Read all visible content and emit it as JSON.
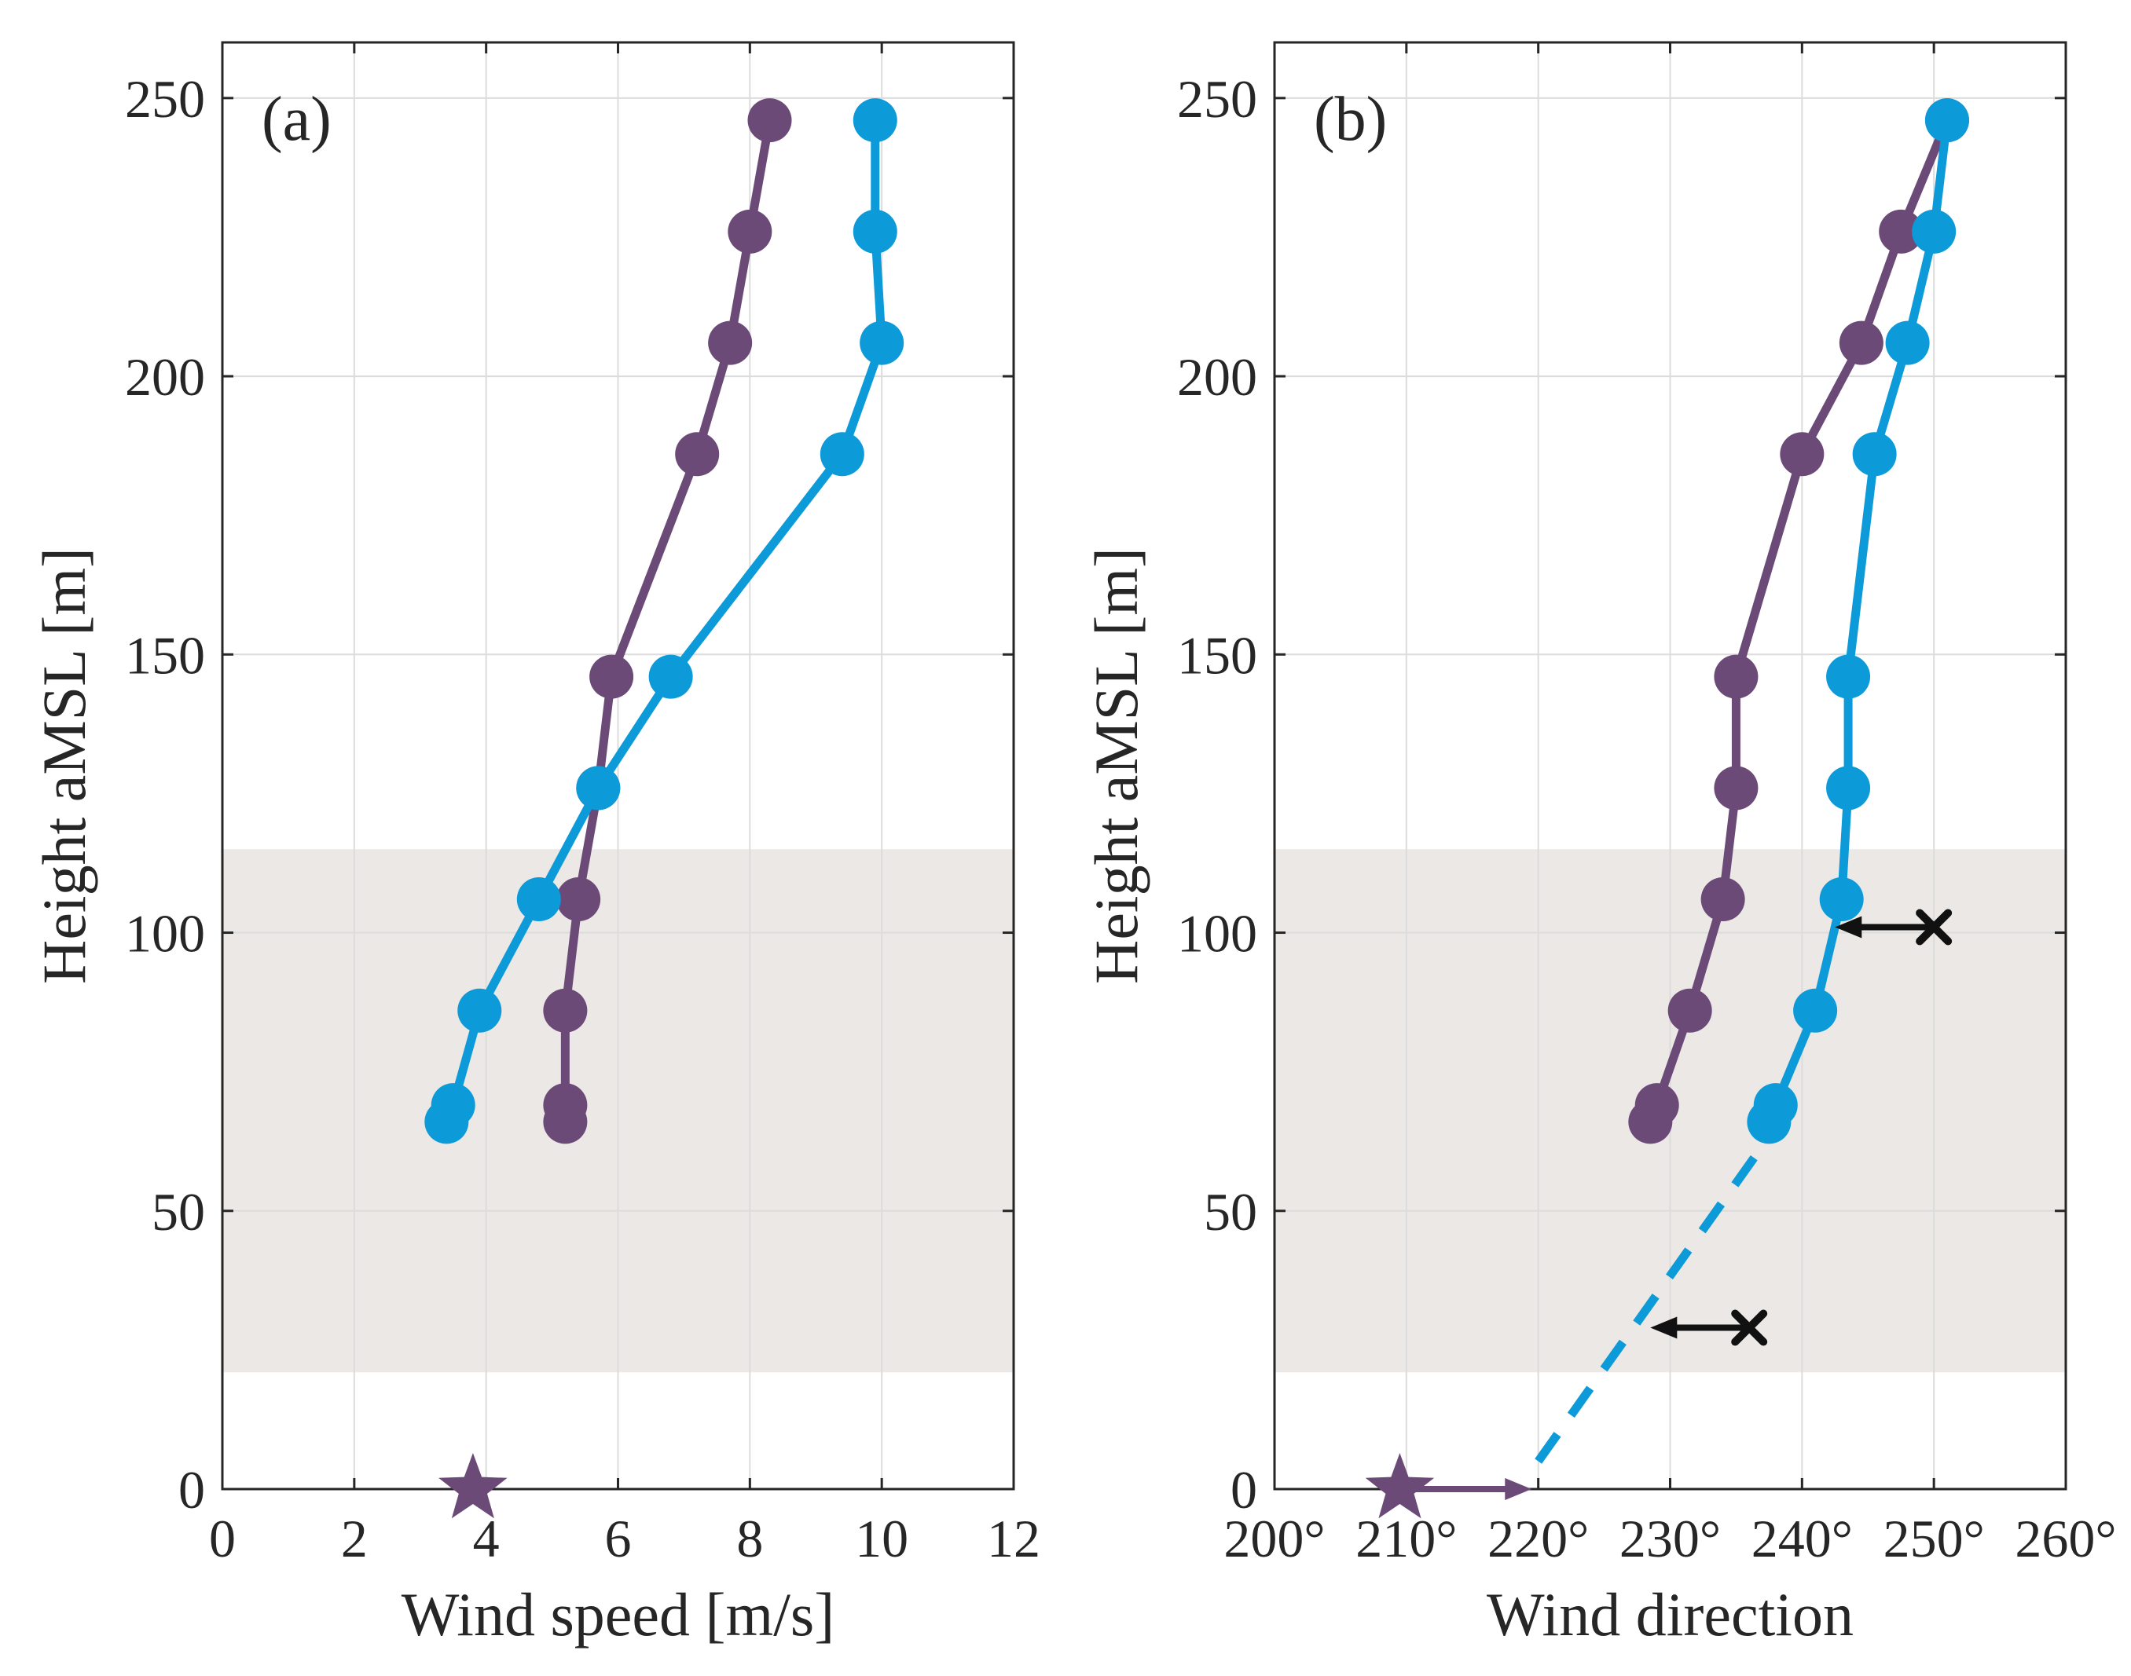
{
  "colors": {
    "purple": "#6b4a78",
    "blue": "#0c9ad8",
    "band": "#ebe8e5",
    "grid": "#dcdcdc",
    "axis": "#262626",
    "marker_x": "#111111"
  },
  "chart_data": [
    {
      "type": "line",
      "panel_label": "(a)",
      "xlabel": "Wind speed [m/s]",
      "ylabel": "Height aMSL [m]",
      "xlim": [
        0,
        12
      ],
      "ylim": [
        0,
        260
      ],
      "xticks": [
        0,
        2,
        4,
        6,
        8,
        10,
        12
      ],
      "xtick_labels": [
        "0",
        "2",
        "4",
        "6",
        "8",
        "10",
        "12"
      ],
      "yticks": [
        0,
        50,
        100,
        150,
        200,
        250
      ],
      "ytick_labels": [
        "0",
        "50",
        "100",
        "150",
        "200",
        "250"
      ],
      "grid": true,
      "shaded_band": [
        21,
        115
      ],
      "series": [
        {
          "name": "purple profile",
          "color": "purple",
          "points": [
            [
              5.2,
              66
            ],
            [
              5.2,
              69
            ],
            [
              5.2,
              86
            ],
            [
              5.4,
              106
            ],
            [
              5.7,
              126
            ],
            [
              5.9,
              146
            ],
            [
              7.2,
              186
            ],
            [
              7.7,
              206
            ],
            [
              8.0,
              226
            ],
            [
              8.3,
              246
            ]
          ]
        },
        {
          "name": "blue profile",
          "color": "blue",
          "points": [
            [
              3.4,
              66
            ],
            [
              3.5,
              69
            ],
            [
              3.9,
              86
            ],
            [
              4.8,
              106
            ],
            [
              5.7,
              126
            ],
            [
              6.8,
              146
            ],
            [
              9.4,
              186
            ],
            [
              10.0,
              206
            ],
            [
              9.9,
              226
            ],
            [
              9.9,
              246
            ]
          ]
        }
      ],
      "surface_markers": [
        {
          "shape": "star",
          "color": "purple",
          "x": 3.8,
          "y": 0
        }
      ]
    },
    {
      "type": "line",
      "panel_label": "(b)",
      "xlabel": "Wind direction",
      "ylabel": "Height aMSL [m]",
      "xlim": [
        200,
        260
      ],
      "ylim": [
        0,
        260
      ],
      "xticks": [
        200,
        210,
        220,
        230,
        240,
        250,
        260
      ],
      "xtick_labels": [
        "200°",
        "210°",
        "220°",
        "230°",
        "240°",
        "250°",
        "260°"
      ],
      "yticks": [
        0,
        50,
        100,
        150,
        200,
        250
      ],
      "ytick_labels": [
        "0",
        "50",
        "100",
        "150",
        "200",
        "250"
      ],
      "grid": true,
      "shaded_band": [
        21,
        115
      ],
      "series": [
        {
          "name": "purple profile",
          "color": "purple",
          "points": [
            [
              228.5,
              66
            ],
            [
              229.0,
              69
            ],
            [
              231.5,
              86
            ],
            [
              234.0,
              106
            ],
            [
              235.0,
              126
            ],
            [
              235.0,
              146
            ],
            [
              240.0,
              186
            ],
            [
              244.5,
              206
            ],
            [
              247.5,
              226
            ],
            [
              251.0,
              246
            ]
          ]
        },
        {
          "name": "blue profile",
          "color": "blue",
          "points": [
            [
              237.5,
              66
            ],
            [
              238.0,
              69
            ],
            [
              241.0,
              86
            ],
            [
              243.0,
              106
            ],
            [
              243.5,
              126
            ],
            [
              243.5,
              146
            ],
            [
              245.5,
              186
            ],
            [
              248.0,
              206
            ],
            [
              250.0,
              226
            ],
            [
              251.0,
              246
            ]
          ]
        }
      ],
      "extrapolation": {
        "color": "blue",
        "style": "dashed",
        "points": [
          [
            220.0,
            5
          ],
          [
            236.5,
            60
          ]
        ]
      },
      "surface_markers": [
        {
          "shape": "star",
          "color": "purple",
          "x": 209.5,
          "y": 0
        }
      ],
      "arrows": [
        {
          "color": "purple",
          "from": [
            209.5,
            0
          ],
          "to": [
            219.5,
            0
          ]
        },
        {
          "color": "marker_x",
          "from": [
            250.0,
            101
          ],
          "to": [
            242.5,
            101
          ],
          "start_marker": "x"
        },
        {
          "color": "marker_x",
          "from": [
            236.0,
            29
          ],
          "to": [
            228.5,
            29
          ],
          "start_marker": "x"
        }
      ]
    }
  ]
}
